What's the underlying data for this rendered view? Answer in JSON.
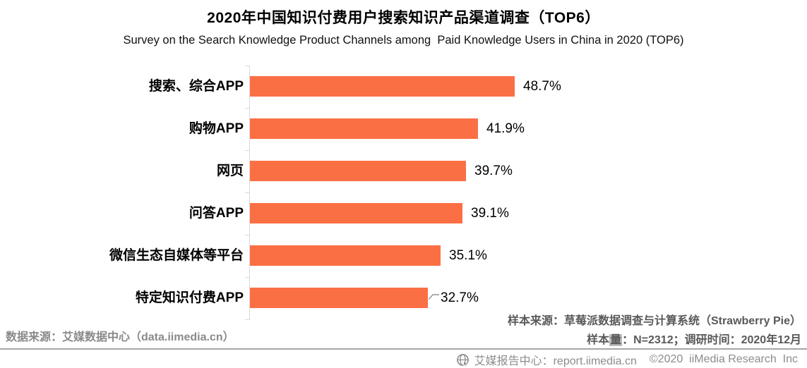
{
  "header": {
    "title": "2020年中国知识付费用户搜索知识产品渠道调查（TOP6）",
    "subtitle": "Survey on the Search Knowledge Product Channels among  Paid Knowledge Users in China in 2020 (TOP6)"
  },
  "chart_data": {
    "type": "bar",
    "orientation": "horizontal",
    "title": "2020年中国知识付费用户搜索知识产品渠道调查（TOP6）",
    "categories": [
      "搜索、综合APP",
      "购物APP",
      "网页",
      "问答APP",
      "微信生态自媒体等平台",
      "特定知识付费APP"
    ],
    "values": [
      48.7,
      41.9,
      39.7,
      39.1,
      35.1,
      32.7
    ],
    "unit": "%",
    "xlim": [
      0,
      50
    ],
    "grid": false,
    "legend": "none",
    "value_labels_shown": true,
    "value_label_leader_on_last": true,
    "bar_color": "#fb6f44",
    "axis_color": "#d9d9d9"
  },
  "notes": {
    "sample_source": "样本来源：草莓派数据调查与计算系统（Strawberry Pie）",
    "sample_info": {
      "pre": "样本",
      "highlight": "量",
      "post": "：N=2312；调研时间：2020年12月"
    },
    "data_source": "数据来源：艾媒数据中心（data.iimedia.cn）"
  },
  "footer": {
    "icon": "globe-cursor-icon",
    "brand": "艾媒报告中心：report.iimedia.cn",
    "copyright": "©2020  iiMedia Research  Inc"
  },
  "colors": {
    "bar": "#fb6f44",
    "axis": "#d9d9d9",
    "notes_dark": "#595959",
    "notes_gray": "#8a8a8a",
    "footer_gray": "#8c8c8c",
    "divider": "#a6a6a6"
  }
}
